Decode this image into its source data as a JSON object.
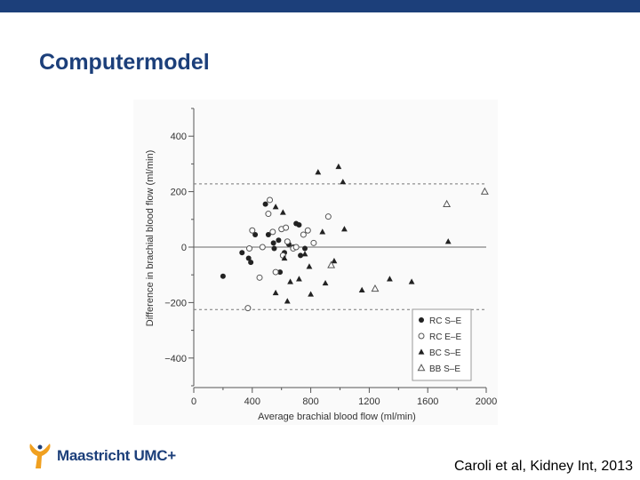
{
  "slide": {
    "title": "Computermodel",
    "citation": "Caroli et al, Kidney Int, 2013",
    "logo_text": "Maastricht UMC+",
    "colors": {
      "bar": "#1c3f7a",
      "title": "#1c3f7a",
      "logo_orange": "#f0a020"
    }
  },
  "chart_data": {
    "type": "scatter",
    "xlabel": "Average brachial blood flow (ml/min)",
    "ylabel": "Difference in brachial blood flow (ml/min)",
    "xlim": [
      0,
      2000
    ],
    "ylim": [
      -500,
      500
    ],
    "x_ticks": [
      0,
      400,
      800,
      1200,
      1600,
      2000
    ],
    "y_ticks": [
      -400,
      -200,
      0,
      200,
      400
    ],
    "y_tick_labels": [
      "−400",
      "−200",
      "0",
      "200",
      "400"
    ],
    "grid": false,
    "legend_position": "bottom-right",
    "reference_lines": [
      {
        "y": 0,
        "style": "solid"
      },
      {
        "y": 228,
        "style": "dashed"
      },
      {
        "y": -225,
        "style": "dashed"
      }
    ],
    "series": [
      {
        "name": "RC S–E",
        "marker": "filled-circle",
        "points": [
          [
            200,
            -105
          ],
          [
            330,
            -20
          ],
          [
            375,
            -40
          ],
          [
            390,
            -55
          ],
          [
            420,
            45
          ],
          [
            490,
            155
          ],
          [
            510,
            45
          ],
          [
            545,
            15
          ],
          [
            550,
            -5
          ],
          [
            580,
            25
          ],
          [
            590,
            -90
          ],
          [
            620,
            -20
          ],
          [
            650,
            10
          ],
          [
            680,
            0
          ],
          [
            700,
            85
          ],
          [
            720,
            80
          ],
          [
            730,
            -30
          ],
          [
            760,
            -5
          ]
        ]
      },
      {
        "name": "RC E–E",
        "marker": "open-circle",
        "points": [
          [
            370,
            -220
          ],
          [
            380,
            -5
          ],
          [
            400,
            60
          ],
          [
            450,
            -110
          ],
          [
            470,
            0
          ],
          [
            510,
            120
          ],
          [
            520,
            170
          ],
          [
            540,
            55
          ],
          [
            560,
            -90
          ],
          [
            600,
            65
          ],
          [
            610,
            -30
          ],
          [
            630,
            70
          ],
          [
            640,
            20
          ],
          [
            680,
            -5
          ],
          [
            700,
            0
          ],
          [
            750,
            45
          ],
          [
            780,
            60
          ],
          [
            820,
            15
          ],
          [
            920,
            110
          ]
        ]
      },
      {
        "name": "BC S–E",
        "marker": "filled-triangle",
        "points": [
          [
            560,
            145
          ],
          [
            560,
            -165
          ],
          [
            610,
            125
          ],
          [
            620,
            -40
          ],
          [
            640,
            -195
          ],
          [
            660,
            -125
          ],
          [
            720,
            -115
          ],
          [
            760,
            -25
          ],
          [
            790,
            -70
          ],
          [
            800,
            -170
          ],
          [
            850,
            270
          ],
          [
            880,
            55
          ],
          [
            900,
            -130
          ],
          [
            960,
            -50
          ],
          [
            990,
            290
          ],
          [
            1020,
            235
          ],
          [
            1030,
            65
          ],
          [
            1150,
            -155
          ],
          [
            1340,
            -115
          ],
          [
            1490,
            -125
          ],
          [
            1740,
            20
          ]
        ]
      },
      {
        "name": "BB S–E",
        "marker": "open-triangle",
        "points": [
          [
            940,
            -65
          ],
          [
            1240,
            -150
          ],
          [
            1730,
            155
          ],
          [
            1990,
            200
          ]
        ]
      }
    ]
  }
}
